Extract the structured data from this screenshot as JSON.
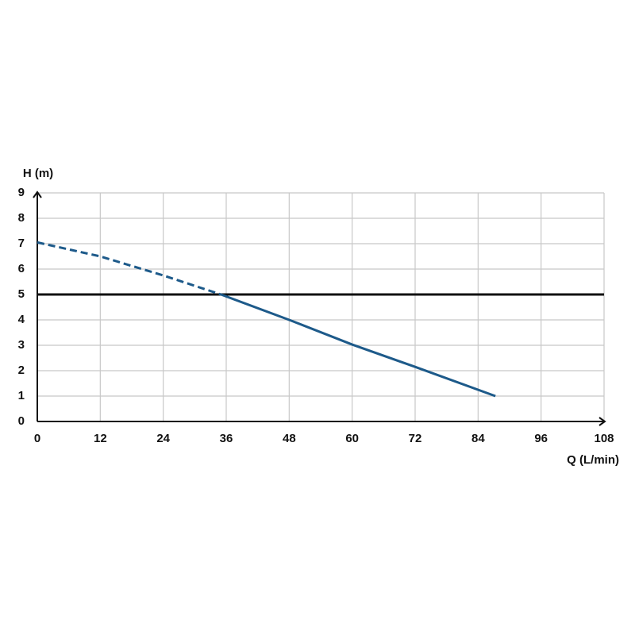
{
  "chart_data": {
    "type": "line",
    "x_label": "Q (L/min)",
    "y_label": "H (m)",
    "xlim": [
      0,
      108
    ],
    "xticks": [
      0,
      12,
      24,
      36,
      48,
      60,
      72,
      84,
      96,
      108
    ],
    "ylim": [
      0,
      9
    ],
    "yticks": [
      0,
      1,
      2,
      3,
      4,
      5,
      6,
      7,
      8,
      9
    ],
    "grid": true,
    "grid_color": "#c8c8c8",
    "axis_color": "#111111",
    "series": [
      {
        "color": "#1d5a8a",
        "dash": true,
        "x": [
          0,
          12,
          24,
          35
        ],
        "values": [
          7.05,
          6.5,
          5.75,
          5
        ]
      },
      {
        "color": "#1d5a8a",
        "dash": false,
        "x": [
          35,
          48,
          60,
          72,
          87.3
        ],
        "values": [
          5,
          4,
          3.03,
          2.15,
          1
        ]
      }
    ],
    "reference_lines": [
      {
        "value": 5,
        "color": "#111111"
      }
    ]
  }
}
